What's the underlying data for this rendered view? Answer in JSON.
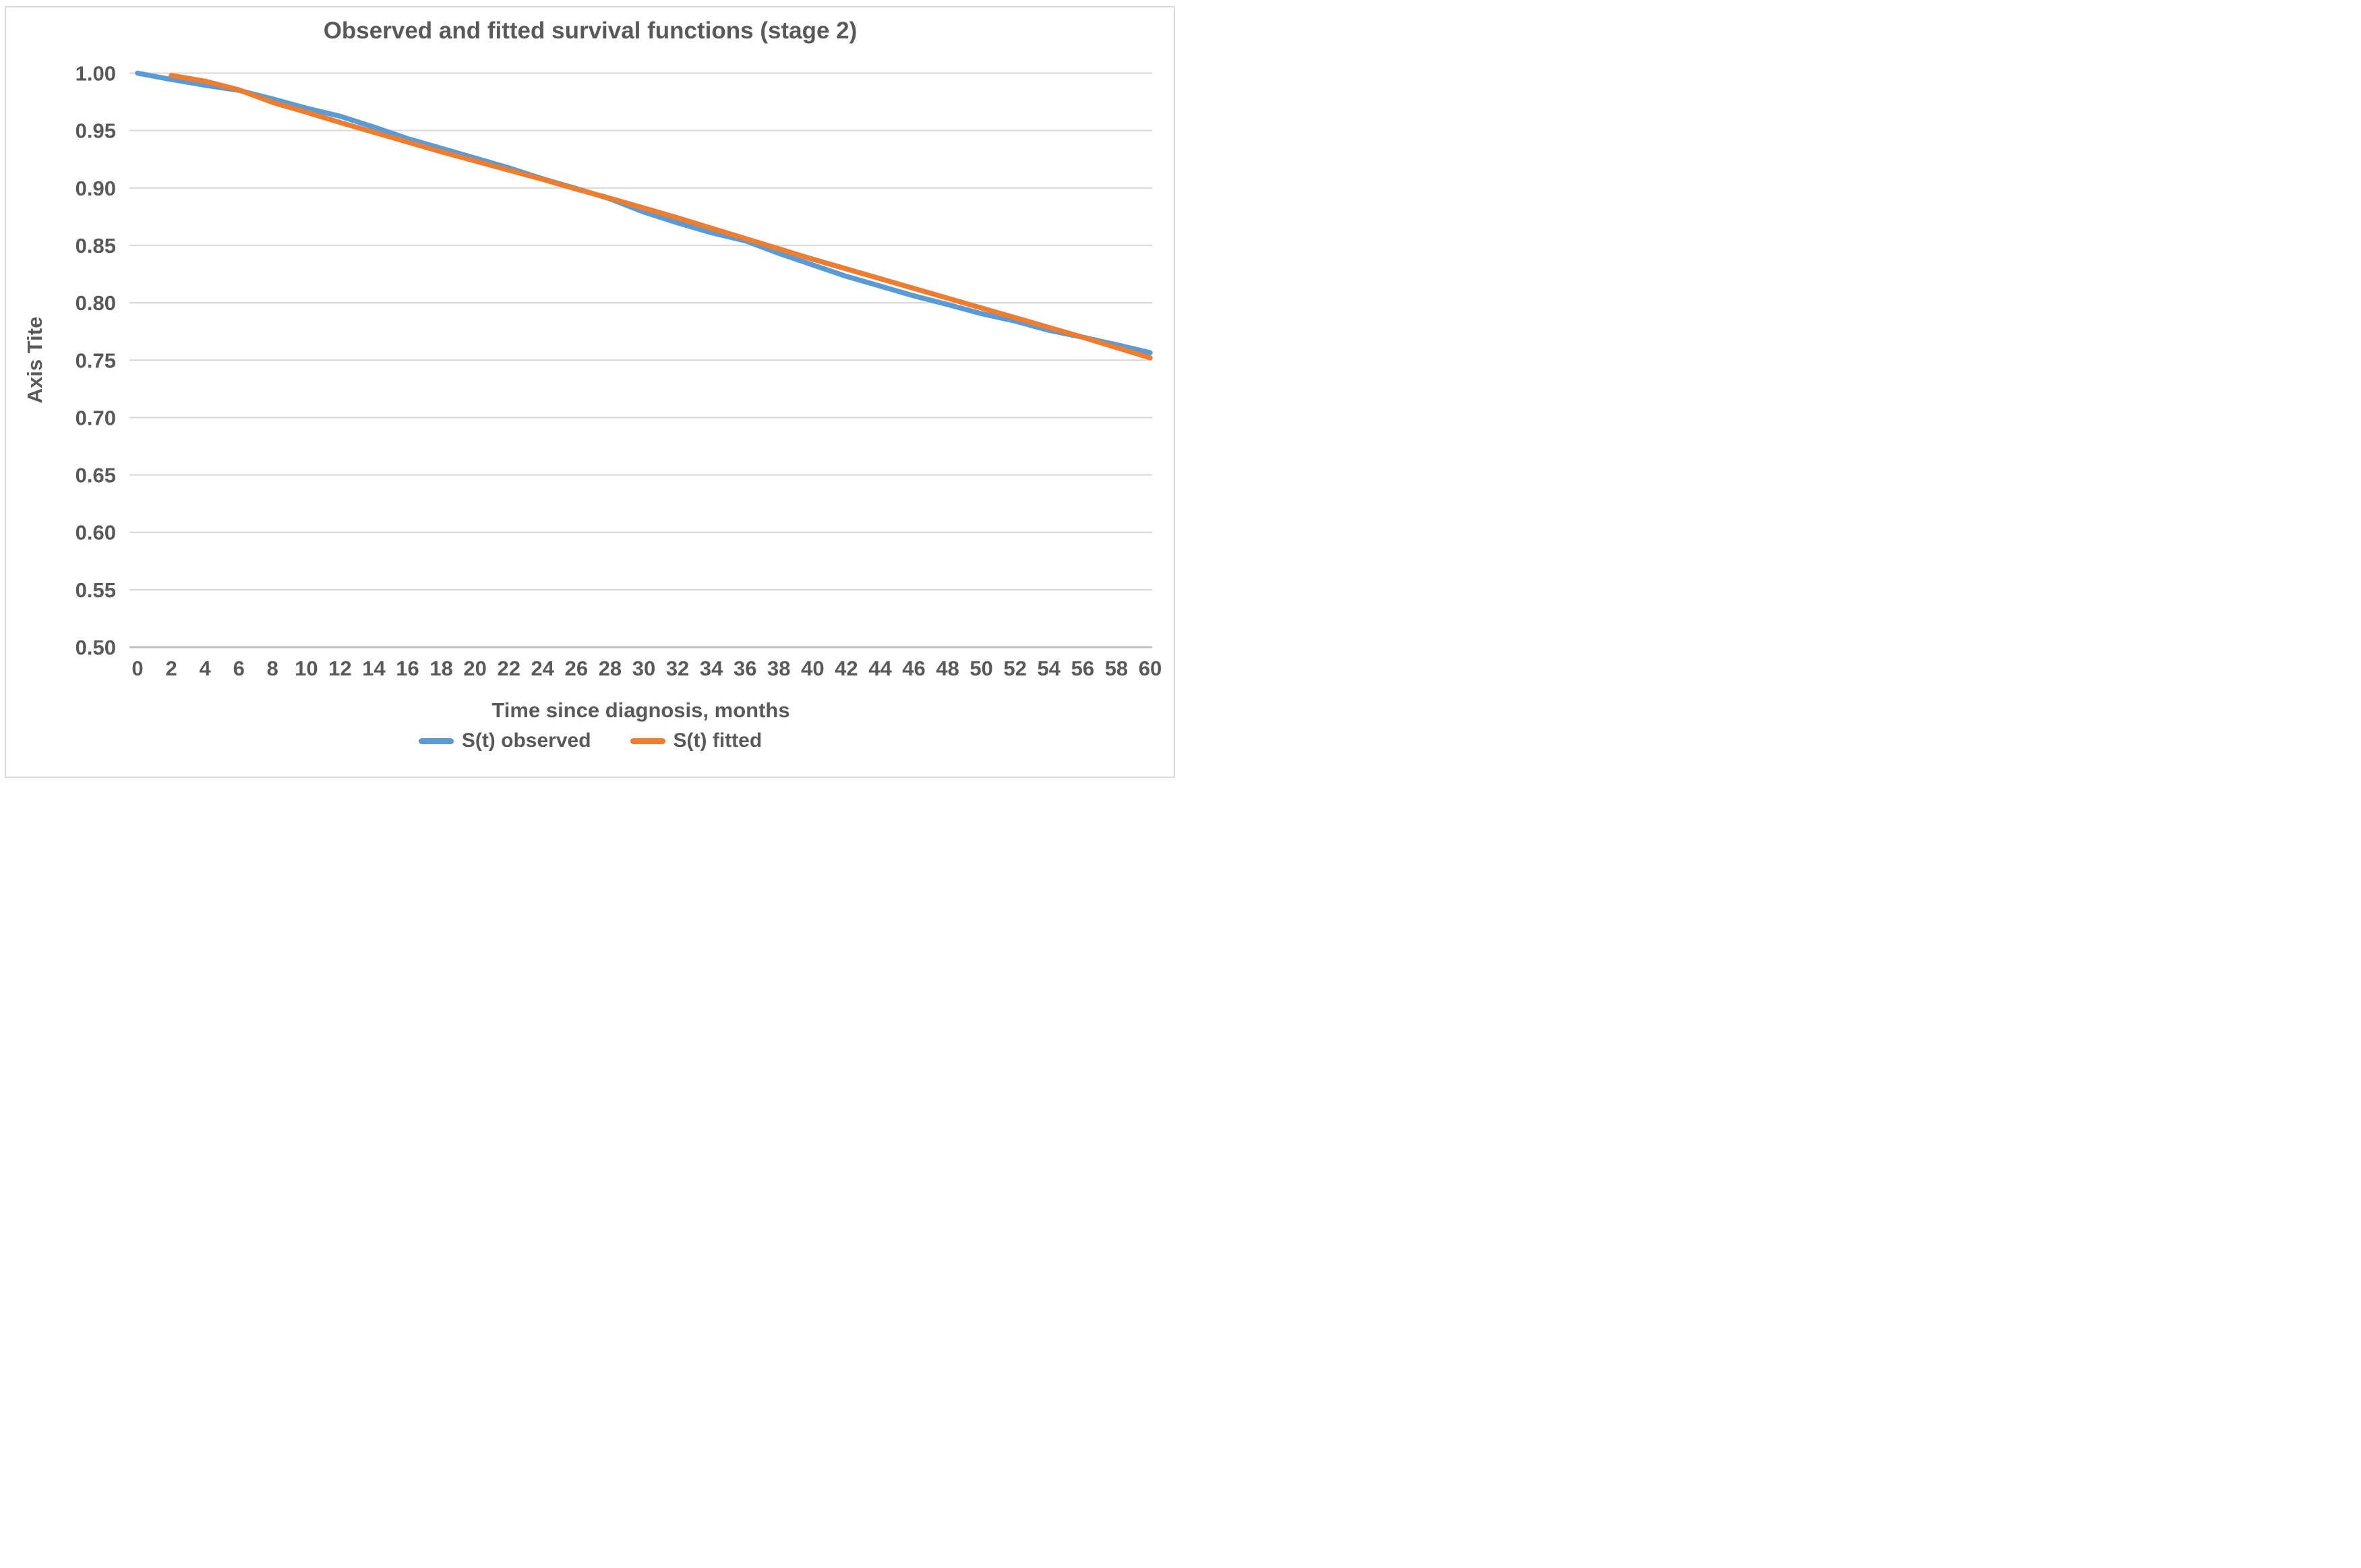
{
  "chart_data": {
    "type": "line",
    "title": "Observed and fitted survival functions (stage 2)",
    "xlabel": "Time since diagnosis, months",
    "ylabel": "Axis Tite",
    "xlim": [
      0,
      60
    ],
    "ylim": [
      0.5,
      1.0
    ],
    "x_ticks": [
      0,
      2,
      4,
      6,
      8,
      10,
      12,
      14,
      16,
      18,
      20,
      22,
      24,
      26,
      28,
      30,
      32,
      34,
      36,
      38,
      40,
      42,
      44,
      46,
      48,
      50,
      52,
      54,
      56,
      58,
      60
    ],
    "y_tick_labels": [
      "1.00",
      "0.95",
      "0.90",
      "0.85",
      "0.80",
      "0.75",
      "0.70",
      "0.65",
      "0.60",
      "0.55",
      "0.50"
    ],
    "y_tick_values": [
      1.0,
      0.95,
      0.9,
      0.85,
      0.8,
      0.75,
      0.7,
      0.65,
      0.6,
      0.55,
      0.5
    ],
    "grid": "horizontal",
    "legend_position": "bottom",
    "colors": {
      "observed": "#5B9BD5",
      "fitted": "#ED7D31",
      "gridline": "#D9D9D9",
      "axis_line": "#BFBFBF",
      "text": "#595959",
      "border": "#D9D9D9"
    },
    "series": [
      {
        "name": "S(t) observed",
        "color": "#5B9BD5",
        "x": [
          0,
          2,
          4,
          6,
          8,
          10,
          12,
          14,
          16,
          18,
          20,
          22,
          24,
          26,
          28,
          30,
          32,
          34,
          36,
          38,
          40,
          42,
          44,
          46,
          48,
          50,
          52,
          54,
          56,
          58,
          60
        ],
        "values": [
          1.0,
          0.9945,
          0.9895,
          0.985,
          0.9775,
          0.9695,
          0.9625,
          0.953,
          0.943,
          0.9345,
          0.926,
          0.9175,
          0.908,
          0.8995,
          0.8905,
          0.879,
          0.8695,
          0.861,
          0.854,
          0.843,
          0.833,
          0.823,
          0.8145,
          0.806,
          0.7985,
          0.7905,
          0.784,
          0.776,
          0.77,
          0.7635,
          0.7565
        ]
      },
      {
        "name": "S(t) fitted",
        "color": "#ED7D31",
        "x": [
          2,
          4,
          6,
          8,
          10,
          12,
          14,
          16,
          18,
          20,
          22,
          24,
          26,
          28,
          30,
          32,
          34,
          36,
          38,
          40,
          42,
          44,
          46,
          48,
          50,
          52,
          54,
          56,
          58,
          60
        ],
        "values": [
          0.998,
          0.993,
          0.9855,
          0.9745,
          0.966,
          0.957,
          0.9485,
          0.94,
          0.9315,
          0.9235,
          0.9155,
          0.9075,
          0.899,
          0.891,
          0.8825,
          0.874,
          0.865,
          0.856,
          0.847,
          0.838,
          0.8295,
          0.821,
          0.8125,
          0.804,
          0.7955,
          0.787,
          0.7785,
          0.77,
          0.761,
          0.752
        ]
      }
    ]
  }
}
